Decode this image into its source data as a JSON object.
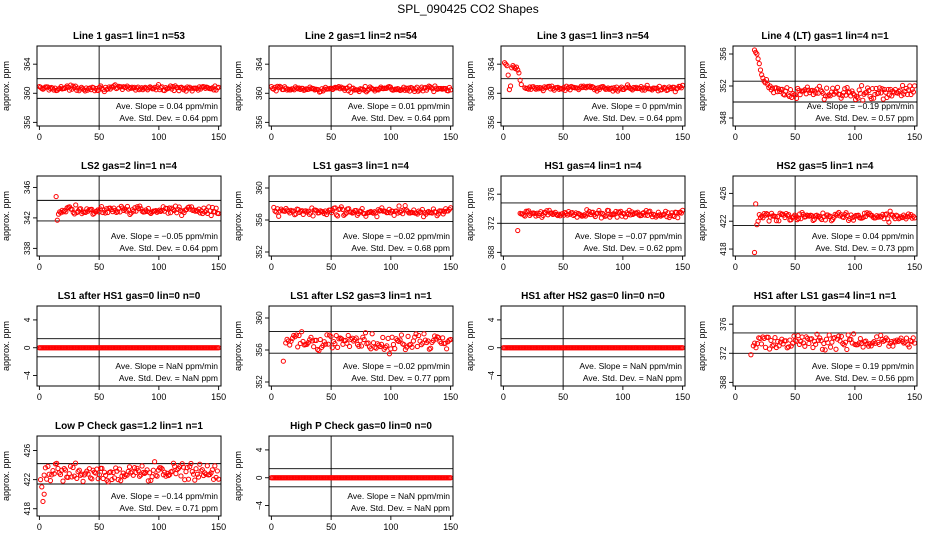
{
  "figure_title": "SPL_090425  CO2 Shapes",
  "colors": {
    "points": "#ff0000",
    "axes": "#000000",
    "background": "#ffffff"
  },
  "chart_data": [
    {
      "type": "scatter",
      "title": "Line 1 gas=1 lin=1 n=53",
      "ylabel": "approx. ppm",
      "xlim": [
        -2,
        152
      ],
      "ylim": [
        355.5,
        366.5
      ],
      "xticks": [
        0,
        50,
        100,
        150
      ],
      "yticks": [
        356,
        360,
        364
      ],
      "hlines": [
        359.3,
        362.0
      ],
      "vline": 50,
      "slope_label": "Ave. Slope = ",
      "slope": "0.04",
      "slope_unit": "ppm/min",
      "sd_label": "Ave. Std. Dev. = ",
      "sd": "0.64",
      "sd_unit": "ppm",
      "series": [
        {
          "x_start": 0,
          "x_end": 150,
          "n": 150,
          "base": 360.7,
          "noise": 0.25
        }
      ]
    },
    {
      "type": "scatter",
      "title": "Line 2 gas=1 lin=2 n=54",
      "ylabel": "approx. ppm",
      "xlim": [
        -2,
        152
      ],
      "ylim": [
        355.5,
        366.5
      ],
      "xticks": [
        0,
        50,
        100,
        150
      ],
      "yticks": [
        356,
        360,
        364
      ],
      "hlines": [
        359.3,
        362.0
      ],
      "vline": 50,
      "slope_label": "Ave. Slope = ",
      "slope": "0.01",
      "slope_unit": "ppm/min",
      "sd_label": "Ave. Std. Dev. = ",
      "sd": "0.64",
      "sd_unit": "ppm",
      "series": [
        {
          "x_start": 0,
          "x_end": 150,
          "n": 150,
          "base": 360.6,
          "noise": 0.25
        }
      ]
    },
    {
      "type": "scatter",
      "title": "Line 3 gas=1 lin=3 n=54",
      "ylabel": "approx. ppm",
      "xlim": [
        -2,
        152
      ],
      "ylim": [
        355.5,
        366.5
      ],
      "xticks": [
        0,
        50,
        100,
        150
      ],
      "yticks": [
        356,
        360,
        364
      ],
      "hlines": [
        359.3,
        362.0
      ],
      "vline": 50,
      "slope_label": "Ave. Slope = ",
      "slope": "0",
      "slope_unit": "ppm/min",
      "sd_label": "Ave. Std. Dev. = ",
      "sd": "0.64",
      "sd_unit": "ppm",
      "series": [
        {
          "x_start": 18,
          "x_end": 150,
          "n": 130,
          "base": 360.7,
          "noise": 0.25
        }
      ],
      "extra_points": [
        [
          1,
          364.2
        ],
        [
          2,
          364.0
        ],
        [
          3,
          363.8
        ],
        [
          4,
          362.5
        ],
        [
          5,
          360.5
        ],
        [
          6,
          361.0
        ],
        [
          7,
          363.5
        ],
        [
          8,
          363.8
        ],
        [
          9,
          363.6
        ],
        [
          10,
          363.4
        ],
        [
          11,
          363.6
        ],
        [
          12,
          363.2
        ],
        [
          13,
          362.8
        ],
        [
          14,
          361.8
        ],
        [
          15,
          361.2
        ]
      ]
    },
    {
      "type": "scatter",
      "title": "Line 4 (LT) gas=1 lin=4 n=1",
      "ylabel": "approx. ppm",
      "xlim": [
        -2,
        152
      ],
      "ylim": [
        347.0,
        357.0
      ],
      "xticks": [
        0,
        50,
        100,
        150
      ],
      "yticks": [
        348,
        352,
        356
      ],
      "hlines": [
        350.0,
        352.6
      ],
      "vline": 50,
      "slope_label": "Ave. Slope = ",
      "slope": "−0.19",
      "slope_unit": "ppm/min",
      "sd_label": "Ave. Std. Dev. = ",
      "sd": "0.57",
      "sd_unit": "ppm",
      "series": [
        {
          "x_start": 30,
          "x_end": 150,
          "n": 120,
          "base": 351.2,
          "noise": 0.6
        }
      ],
      "extra_points": [
        [
          16,
          356.5
        ],
        [
          17,
          356.2
        ],
        [
          18,
          356.0
        ],
        [
          19,
          355.4
        ],
        [
          20,
          354.8
        ],
        [
          21,
          354.0
        ],
        [
          22,
          353.4
        ],
        [
          23,
          353.0
        ],
        [
          24,
          352.6
        ],
        [
          25,
          352.4
        ],
        [
          26,
          352.8
        ],
        [
          27,
          352.2
        ],
        [
          28,
          351.8
        ],
        [
          29,
          352.0
        ]
      ]
    },
    {
      "type": "scatter",
      "title": "LS2 gas=2 lin=1 n=4",
      "ylabel": "approx. ppm",
      "xlim": [
        -2,
        152
      ],
      "ylim": [
        337.0,
        347.5
      ],
      "xticks": [
        0,
        50,
        100,
        150
      ],
      "yticks": [
        338,
        342,
        346
      ],
      "hlines": [
        341.6,
        344.3
      ],
      "vline": 50,
      "slope_label": "Ave. Slope = ",
      "slope": "−0.05",
      "slope_unit": "ppm/min",
      "sd_label": "Ave. Std. Dev. = ",
      "sd": "0.64",
      "sd_unit": "ppm",
      "series": [
        {
          "x_start": 17,
          "x_end": 150,
          "n": 130,
          "base": 343.0,
          "noise": 0.4
        }
      ],
      "extra_points": [
        [
          14,
          344.8
        ],
        [
          15,
          341.7
        ],
        [
          16,
          342.5
        ]
      ]
    },
    {
      "type": "scatter",
      "title": "LS1 gas=3 lin=1 n=4",
      "ylabel": "approx. ppm",
      "xlim": [
        -2,
        152
      ],
      "ylim": [
        351.5,
        361.5
      ],
      "xticks": [
        0,
        50,
        100,
        150
      ],
      "yticks": [
        352,
        356,
        360
      ],
      "hlines": [
        355.8,
        358.3
      ],
      "vline": 50,
      "slope_label": "Ave. Slope = ",
      "slope": "−0.02",
      "slope_unit": "ppm/min",
      "sd_label": "Ave. Std. Dev. = ",
      "sd": "0.68",
      "sd_unit": "ppm",
      "series": [
        {
          "x_start": 2,
          "x_end": 150,
          "n": 145,
          "base": 357.0,
          "noise": 0.45
        }
      ]
    },
    {
      "type": "scatter",
      "title": "HS1 gas=4 lin=1 n=4",
      "ylabel": "approx. ppm",
      "xlim": [
        -2,
        152
      ],
      "ylim": [
        367.5,
        378.5
      ],
      "xticks": [
        0,
        50,
        100,
        150
      ],
      "yticks": [
        368,
        372,
        376
      ],
      "hlines": [
        372.0,
        374.8
      ],
      "vline": 50,
      "slope_label": "Ave. Slope = ",
      "slope": "−0.07",
      "slope_unit": "ppm/min",
      "sd_label": "Ave. Std. Dev. = ",
      "sd": "0.62",
      "sd_unit": "ppm",
      "series": [
        {
          "x_start": 14,
          "x_end": 150,
          "n": 135,
          "base": 373.3,
          "noise": 0.35
        }
      ],
      "extra_points": [
        [
          12,
          371.0
        ]
      ]
    },
    {
      "type": "scatter",
      "title": "HS2 gas=5 lin=1 n=4",
      "ylabel": "approx. ppm",
      "xlim": [
        -2,
        152
      ],
      "ylim": [
        417.0,
        428.5
      ],
      "xticks": [
        0,
        50,
        100,
        150
      ],
      "yticks": [
        418,
        422,
        426
      ],
      "hlines": [
        421.4,
        424.2
      ],
      "vline": 50,
      "slope_label": "Ave. Slope = ",
      "slope": "0.04",
      "slope_unit": "ppm/min",
      "sd_label": "Ave. Std. Dev. = ",
      "sd": "0.73",
      "sd_unit": "ppm",
      "series": [
        {
          "x_start": 20,
          "x_end": 150,
          "n": 128,
          "base": 422.7,
          "noise": 0.45
        }
      ],
      "extra_points": [
        [
          16,
          417.5
        ],
        [
          17,
          424.5
        ],
        [
          18,
          421.5
        ],
        [
          19,
          422.0
        ]
      ]
    },
    {
      "type": "scatter",
      "title": "LS1 after HS1 gas=0 lin=0 n=0",
      "ylabel": "approx. ppm",
      "xlim": [
        -2,
        152
      ],
      "ylim": [
        -5.5,
        6.0
      ],
      "xticks": [
        0,
        50,
        100,
        150
      ],
      "yticks": [
        -4,
        0,
        4
      ],
      "hlines": [
        -1.3,
        1.3
      ],
      "vline": 50,
      "slope_label": "Ave. Slope = ",
      "slope": "NaN",
      "slope_unit": "ppm/min",
      "sd_label": "Ave. Std. Dev. = ",
      "sd": "NaN",
      "sd_unit": "ppm",
      "series": [
        {
          "x_start": 0,
          "x_end": 150,
          "n": 150,
          "base": 0,
          "noise": 0
        }
      ]
    },
    {
      "type": "scatter",
      "title": "LS1 after LS2 gas=3 lin=1 n=1",
      "ylabel": "approx. ppm",
      "xlim": [
        -2,
        152
      ],
      "ylim": [
        351.5,
        361.5
      ],
      "xticks": [
        0,
        50,
        100,
        150
      ],
      "yticks": [
        352,
        356,
        360
      ],
      "hlines": [
        355.6,
        358.3
      ],
      "vline": 50,
      "slope_label": "Ave. Slope = ",
      "slope": "−0.02",
      "slope_unit": "ppm/min",
      "sd_label": "Ave. Std. Dev. = ",
      "sd": "0.77",
      "sd_unit": "ppm",
      "series": [
        {
          "x_start": 12,
          "x_end": 150,
          "n": 125,
          "base": 357.0,
          "noise": 0.9
        }
      ],
      "extra_points": [
        [
          10,
          354.6
        ]
      ]
    },
    {
      "type": "scatter",
      "title": "HS1 after HS2 gas=0 lin=0 n=0",
      "ylabel": "approx. ppm",
      "xlim": [
        -2,
        152
      ],
      "ylim": [
        -5.5,
        6.0
      ],
      "xticks": [
        0,
        50,
        100,
        150
      ],
      "yticks": [
        -4,
        0,
        4
      ],
      "hlines": [
        -1.3,
        1.3
      ],
      "vline": 50,
      "slope_label": "Ave. Slope = ",
      "slope": "NaN",
      "slope_unit": "ppm/min",
      "sd_label": "Ave. Std. Dev. = ",
      "sd": "NaN",
      "sd_unit": "ppm",
      "series": [
        {
          "x_start": 0,
          "x_end": 150,
          "n": 150,
          "base": 0,
          "noise": 0
        }
      ]
    },
    {
      "type": "scatter",
      "title": "HS1 after LS1 gas=4 lin=1 n=1",
      "ylabel": "approx. ppm",
      "xlim": [
        -2,
        152
      ],
      "ylim": [
        367.5,
        378.5
      ],
      "xticks": [
        0,
        50,
        100,
        150
      ],
      "yticks": [
        368,
        372,
        376
      ],
      "hlines": [
        372.0,
        374.8
      ],
      "vline": 50,
      "slope_label": "Ave. Slope = ",
      "slope": "0.19",
      "slope_unit": "ppm/min",
      "sd_label": "Ave. Std. Dev. = ",
      "sd": "0.56",
      "sd_unit": "ppm",
      "series": [
        {
          "x_start": 15,
          "x_end": 150,
          "n": 120,
          "base": 373.6,
          "noise": 0.7
        }
      ],
      "extra_points": [
        [
          13,
          371.8
        ]
      ]
    },
    {
      "type": "scatter",
      "title": "Low P Check gas=1.2 lin=1 n=1",
      "ylabel": "approx. ppm",
      "xlim": [
        -2,
        152
      ],
      "ylim": [
        417.0,
        428.0
      ],
      "xticks": [
        0,
        50,
        100,
        150
      ],
      "yticks": [
        418,
        422,
        426
      ],
      "hlines": [
        421.4,
        424.2
      ],
      "vline": 50,
      "slope_label": "Ave. Slope = ",
      "slope": "−0.14",
      "slope_unit": "ppm/min",
      "sd_label": "Ave. Std. Dev. = ",
      "sd": "0.71",
      "sd_unit": "ppm",
      "series": [
        {
          "x_start": 4,
          "x_end": 150,
          "n": 140,
          "base": 423.0,
          "noise": 0.8
        }
      ],
      "extra_points": [
        [
          1,
          422.0
        ],
        [
          2,
          421.0
        ],
        [
          3,
          419.0
        ],
        [
          4,
          420.0
        ]
      ]
    },
    {
      "type": "scatter",
      "title": "High P Check gas=0 lin=0 n=0",
      "ylabel": "approx. ppm",
      "xlim": [
        -2,
        152
      ],
      "ylim": [
        -5.5,
        6.0
      ],
      "xticks": [
        0,
        50,
        100,
        150
      ],
      "yticks": [
        -4,
        0,
        4
      ],
      "hlines": [
        -1.3,
        1.3
      ],
      "vline": 50,
      "slope_label": "Ave. Slope = ",
      "slope": "NaN",
      "slope_unit": "ppm/min",
      "sd_label": "Ave. Std. Dev. = ",
      "sd": "NaN",
      "sd_unit": "ppm",
      "series": [
        {
          "x_start": 0,
          "x_end": 150,
          "n": 150,
          "base": 0,
          "noise": 0
        }
      ]
    }
  ]
}
